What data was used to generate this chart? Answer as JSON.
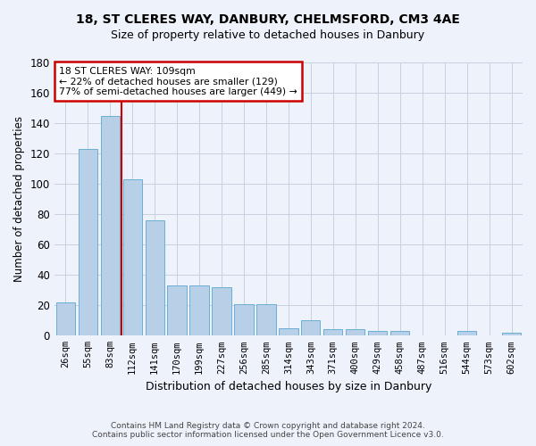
{
  "title1": "18, ST CLERES WAY, DANBURY, CHELMSFORD, CM3 4AE",
  "title2": "Size of property relative to detached houses in Danbury",
  "xlabel": "Distribution of detached houses by size in Danbury",
  "ylabel": "Number of detached properties",
  "categories": [
    "26sqm",
    "55sqm",
    "83sqm",
    "112sqm",
    "141sqm",
    "170sqm",
    "199sqm",
    "227sqm",
    "256sqm",
    "285sqm",
    "314sqm",
    "343sqm",
    "371sqm",
    "400sqm",
    "429sqm",
    "458sqm",
    "487sqm",
    "516sqm",
    "544sqm",
    "573sqm",
    "602sqm"
  ],
  "values": [
    22,
    123,
    145,
    103,
    76,
    33,
    33,
    32,
    21,
    21,
    5,
    10,
    4,
    4,
    3,
    3,
    0,
    0,
    3,
    0,
    2
  ],
  "bar_color": "#b8cfe8",
  "bar_edge_color": "#6baed6",
  "background_color": "#eef2fb",
  "grid_color": "#c8d0e0",
  "property_line_xbar": 2.5,
  "property_line_color": "#cc0000",
  "annotation_line1": "18 ST CLERES WAY: 109sqm",
  "annotation_line2": "← 22% of detached houses are smaller (129)",
  "annotation_line3": "77% of semi-detached houses are larger (449) →",
  "annotation_box_edgecolor": "#cc0000",
  "ylim": [
    0,
    180
  ],
  "yticks": [
    0,
    20,
    40,
    60,
    80,
    100,
    120,
    140,
    160,
    180
  ],
  "footer_line1": "Contains HM Land Registry data © Crown copyright and database right 2024.",
  "footer_line2": "Contains public sector information licensed under the Open Government Licence v3.0."
}
